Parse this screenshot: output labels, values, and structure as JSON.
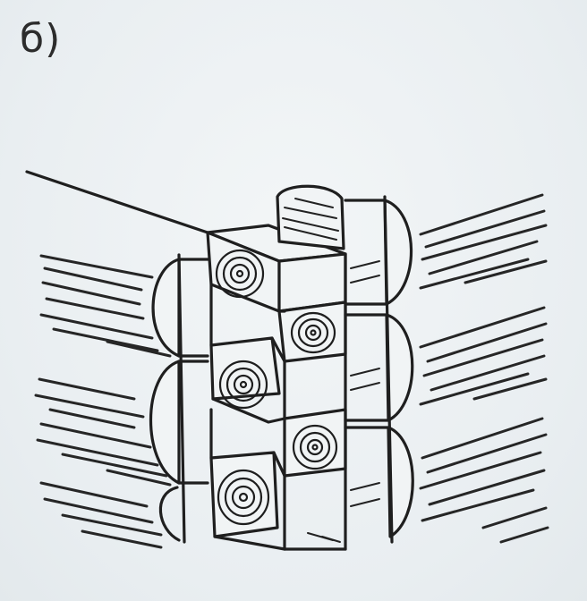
{
  "figure": {
    "label": "б)"
  }
}
